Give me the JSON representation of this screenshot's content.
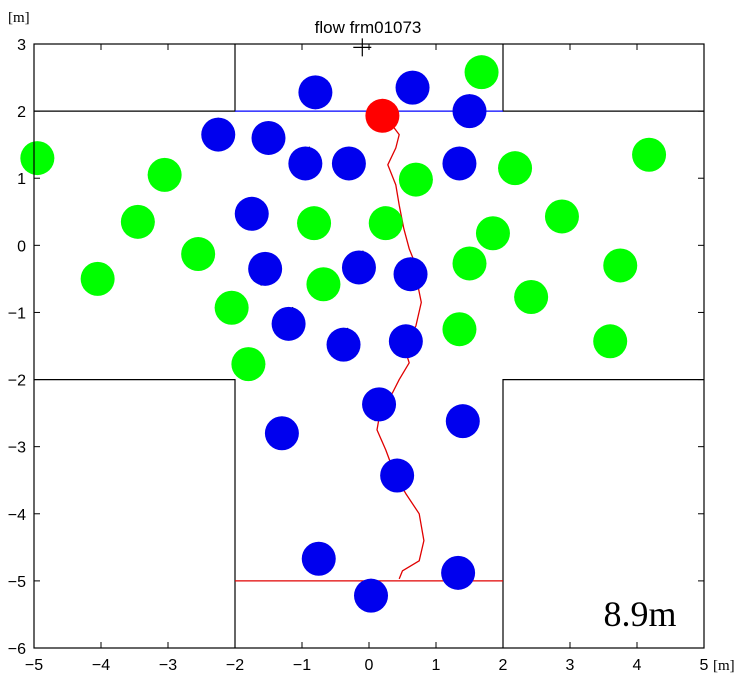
{
  "chart_data": {
    "type": "scatter",
    "title": "flow frm01073",
    "xlabel": "[m]",
    "ylabel": "[m]",
    "xlim": [
      -5,
      5
    ],
    "ylim": [
      -6,
      3
    ],
    "xticks": [
      -5,
      -4,
      -3,
      -2,
      -1,
      0,
      1,
      2,
      3,
      4,
      5
    ],
    "yticks": [
      -6,
      -5,
      -4,
      -3,
      -2,
      -1,
      0,
      1,
      2,
      3
    ],
    "annotation": "8.9m",
    "grid": false,
    "colors": {
      "blue": "#0000ee",
      "green": "#00ff00",
      "red": "#ff0000",
      "walls": "#000000",
      "path": "#e00000",
      "gate": "#0000ff"
    },
    "walls": [
      [
        [
          -2,
          3
        ],
        [
          -2,
          2
        ],
        [
          -5,
          2
        ]
      ],
      [
        [
          2,
          3
        ],
        [
          2,
          2
        ],
        [
          5,
          2
        ]
      ],
      [
        [
          -5,
          -2
        ],
        [
          -2,
          -2
        ],
        [
          -2,
          -6
        ]
      ],
      [
        [
          5,
          -2
        ],
        [
          2,
          -2
        ],
        [
          2,
          -6
        ]
      ]
    ],
    "gate_line": [
      [
        -2,
        2
      ],
      [
        2,
        2
      ]
    ],
    "start_line": [
      [
        -2,
        -5
      ],
      [
        2,
        -5
      ]
    ],
    "cross_marker": [
      -0.1,
      2.95
    ],
    "agents": [
      {
        "x": -0.8,
        "y": 2.28,
        "color": "blue",
        "dx": 0,
        "dy": -0.2
      },
      {
        "x": 0.65,
        "y": 2.35,
        "color": "blue",
        "dx": 0,
        "dy": -0.2
      },
      {
        "x": 1.5,
        "y": 2.0,
        "color": "blue",
        "dx": 0,
        "dy": 0.2
      },
      {
        "x": -2.25,
        "y": 1.65,
        "color": "blue",
        "dx": 0,
        "dy": 0.2
      },
      {
        "x": -1.5,
        "y": 1.6,
        "color": "blue",
        "dx": 0,
        "dy": -0.2
      },
      {
        "x": -0.95,
        "y": 1.22,
        "color": "blue",
        "dx": 0.05,
        "dy": 0.2
      },
      {
        "x": -0.3,
        "y": 1.22,
        "color": "blue",
        "dx": 0,
        "dy": -0.2
      },
      {
        "x": 1.35,
        "y": 1.22,
        "color": "blue",
        "dx": 0,
        "dy": 0.2
      },
      {
        "x": -1.75,
        "y": 0.47,
        "color": "blue",
        "dx": 0,
        "dy": -0.2
      },
      {
        "x": -1.55,
        "y": -0.35,
        "color": "blue",
        "dx": -0.05,
        "dy": -0.2
      },
      {
        "x": -0.15,
        "y": -0.33,
        "color": "blue",
        "dx": 0.05,
        "dy": 0.2
      },
      {
        "x": 0.62,
        "y": -0.43,
        "color": "blue",
        "dx": 0,
        "dy": 0.2
      },
      {
        "x": -1.2,
        "y": -1.17,
        "color": "blue",
        "dx": 0.05,
        "dy": 0.2
      },
      {
        "x": -0.38,
        "y": -1.48,
        "color": "blue",
        "dx": 0.05,
        "dy": 0.2
      },
      {
        "x": 0.55,
        "y": -1.43,
        "color": "blue",
        "dx": 0,
        "dy": 0.2
      },
      {
        "x": 0.15,
        "y": -2.37,
        "color": "blue",
        "dx": -0.05,
        "dy": -0.2
      },
      {
        "x": -1.3,
        "y": -2.8,
        "color": "blue",
        "dx": 0,
        "dy": 0.2
      },
      {
        "x": 1.4,
        "y": -2.62,
        "color": "blue",
        "dx": 0,
        "dy": -0.2
      },
      {
        "x": 0.42,
        "y": -3.43,
        "color": "blue",
        "dx": 0,
        "dy": 0.2
      },
      {
        "x": -0.75,
        "y": -4.67,
        "color": "blue",
        "dx": 0,
        "dy": -0.2
      },
      {
        "x": 1.33,
        "y": -4.88,
        "color": "blue",
        "dx": 0,
        "dy": -0.2
      },
      {
        "x": 0.03,
        "y": -5.22,
        "color": "blue",
        "dx": 0,
        "dy": 0.2
      },
      {
        "x": 1.68,
        "y": 2.58,
        "color": "green",
        "dx": 0.2,
        "dy": 0
      },
      {
        "x": -4.95,
        "y": 1.3,
        "color": "green",
        "dx": 0.2,
        "dy": 0
      },
      {
        "x": -3.05,
        "y": 1.05,
        "color": "green",
        "dx": -0.2,
        "dy": 0
      },
      {
        "x": 0.7,
        "y": 0.98,
        "color": "green",
        "dx": 0.2,
        "dy": 0
      },
      {
        "x": 2.18,
        "y": 1.15,
        "color": "green",
        "dx": -0.2,
        "dy": 0
      },
      {
        "x": 4.18,
        "y": 1.35,
        "color": "green",
        "dx": 0.2,
        "dy": 0
      },
      {
        "x": -3.45,
        "y": 0.35,
        "color": "green",
        "dx": 0.2,
        "dy": 0
      },
      {
        "x": -0.82,
        "y": 0.33,
        "color": "green",
        "dx": -0.2,
        "dy": 0
      },
      {
        "x": 0.25,
        "y": 0.33,
        "color": "green",
        "dx": -0.2,
        "dy": 0
      },
      {
        "x": 2.88,
        "y": 0.43,
        "color": "green",
        "dx": -0.2,
        "dy": 0
      },
      {
        "x": 1.85,
        "y": 0.18,
        "color": "green",
        "dx": -0.2,
        "dy": 0
      },
      {
        "x": -2.55,
        "y": -0.13,
        "color": "green",
        "dx": 0.2,
        "dy": 0
      },
      {
        "x": 1.5,
        "y": -0.27,
        "color": "green",
        "dx": 0.2,
        "dy": 0
      },
      {
        "x": 3.75,
        "y": -0.3,
        "color": "green",
        "dx": -0.2,
        "dy": 0
      },
      {
        "x": -4.05,
        "y": -0.5,
        "color": "green",
        "dx": 0.2,
        "dy": 0
      },
      {
        "x": -0.68,
        "y": -0.58,
        "color": "green",
        "dx": -0.2,
        "dy": 0
      },
      {
        "x": 2.42,
        "y": -0.77,
        "color": "green",
        "dx": -0.2,
        "dy": 0
      },
      {
        "x": -2.05,
        "y": -0.93,
        "color": "green",
        "dx": -0.2,
        "dy": 0
      },
      {
        "x": 1.35,
        "y": -1.25,
        "color": "green",
        "dx": -0.2,
        "dy": 0
      },
      {
        "x": 3.6,
        "y": -1.43,
        "color": "green",
        "dx": 0.2,
        "dy": 0
      },
      {
        "x": -1.8,
        "y": -1.77,
        "color": "green",
        "dx": 0.2,
        "dy": 0
      },
      {
        "x": 0.2,
        "y": 1.93,
        "color": "red",
        "dx": 0,
        "dy": 0
      }
    ],
    "trajectory": [
      [
        0.45,
        -4.97
      ],
      [
        0.5,
        -4.85
      ],
      [
        0.75,
        -4.7
      ],
      [
        0.82,
        -4.4
      ],
      [
        0.75,
        -4.0
      ],
      [
        0.55,
        -3.7
      ],
      [
        0.4,
        -3.45
      ],
      [
        0.25,
        -3.05
      ],
      [
        0.12,
        -2.75
      ],
      [
        0.18,
        -2.4
      ],
      [
        0.35,
        -2.2
      ],
      [
        0.45,
        -2.0
      ],
      [
        0.6,
        -1.75
      ],
      [
        0.52,
        -1.5
      ],
      [
        0.7,
        -1.2
      ],
      [
        0.78,
        -0.85
      ],
      [
        0.72,
        -0.55
      ],
      [
        0.7,
        -0.3
      ],
      [
        0.6,
        -0.05
      ],
      [
        0.52,
        0.25
      ],
      [
        0.45,
        0.6
      ],
      [
        0.4,
        0.9
      ],
      [
        0.28,
        1.2
      ],
      [
        0.4,
        1.45
      ],
      [
        0.45,
        1.65
      ],
      [
        0.3,
        1.85
      ],
      [
        0.2,
        1.95
      ]
    ]
  }
}
